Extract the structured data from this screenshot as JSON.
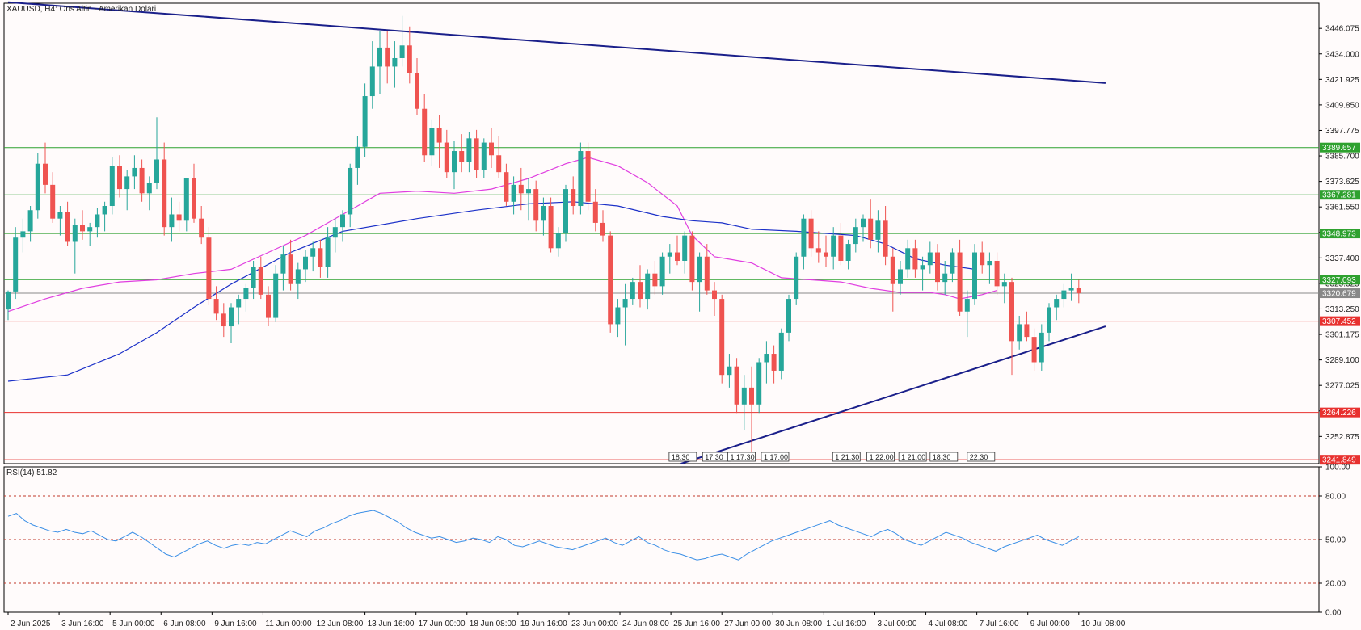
{
  "chart_data": {
    "type": "candlestick",
    "title": "XAUUSD, H4:  Ons Altin - Amerikan Dolari",
    "price_axis": {
      "ylim": [
        3240.0,
        3458.0
      ],
      "ticks": [
        "3446.075",
        "3434.000",
        "3421.925",
        "3409.850",
        "3397.775",
        "3385.700",
        "3373.625",
        "3361.550",
        "3349.475",
        "3337.400",
        "3325.325",
        "3313.250",
        "3301.175",
        "3289.100",
        "3277.025",
        "3264.950",
        "3252.875"
      ]
    },
    "x_axis": {
      "labels": [
        "2 Jun 2025",
        "3 Jun 16:00",
        "5 Jun 00:00",
        "6 Jun 08:00",
        "9 Jun 16:00",
        "11 Jun 00:00",
        "12 Jun 08:00",
        "13 Jun 16:00",
        "17 Jun 00:00",
        "18 Jun 08:00",
        "19 Jun 16:00",
        "23 Jun 00:00",
        "24 Jun 08:00",
        "25 Jun 16:00",
        "27 Jun 00:00",
        "30 Jun 08:00",
        "1 Jul 16:00",
        "3 Jul 00:00",
        "4 Jul 08:00",
        "7 Jul 16:00",
        "9 Jul 00:00",
        "10 Jul 08:00"
      ]
    },
    "horizontal_levels": [
      {
        "price": 3389.657,
        "label": "3389.657",
        "color": "#2fa12f"
      },
      {
        "price": 3367.281,
        "label": "3367.281",
        "color": "#2fa12f"
      },
      {
        "price": 3348.973,
        "label": "3348.973",
        "color": "#2fa12f"
      },
      {
        "price": 3327.093,
        "label": "3327.093",
        "color": "#2fa12f"
      },
      {
        "price": 3320.679,
        "label": "3320.679",
        "color": "#888888"
      },
      {
        "price": 3307.452,
        "label": "3307.452",
        "color": "#e8312f"
      },
      {
        "price": 3264.226,
        "label": "3264.226",
        "color": "#e8312f"
      },
      {
        "price": 3241.849,
        "label": "3241.849",
        "color": "#e8312f"
      }
    ],
    "trendlines": [
      {
        "name": "resistance",
        "color": "#1a1f8a",
        "points": [
          [
            0,
            3458.5
          ],
          [
            147.6,
            3420.2
          ]
        ]
      },
      {
        "name": "support",
        "color": "#1a1f8a",
        "points": [
          [
            90.5,
            3240.0
          ],
          [
            147.6,
            3305.0
          ]
        ]
      }
    ],
    "session_markers": [
      {
        "text": "18:30",
        "x": 88.9
      },
      {
        "text": "17:30",
        "x": 93.4
      },
      {
        "text": "1 17:30",
        "x": 96.8
      },
      {
        "text": "1 17:00",
        "x": 101.3
      },
      {
        "text": "1 21:30",
        "x": 110.9
      },
      {
        "text": "1 22:00",
        "x": 115.5
      },
      {
        "text": "1 21:00",
        "x": 119.8
      },
      {
        "text": "18:30",
        "x": 124.0
      },
      {
        "text": "22:30",
        "x": 129.0
      }
    ],
    "candles_ohlc": [
      [
        3313.0,
        3322.0,
        3308.0,
        3321.5
      ],
      [
        3321.5,
        3352.0,
        3318.0,
        3347.0
      ],
      [
        3347.0,
        3356.0,
        3340.0,
        3350.0
      ],
      [
        3350.0,
        3362.0,
        3345.0,
        3360.0
      ],
      [
        3360.0,
        3387.0,
        3356.0,
        3382.0
      ],
      [
        3382.0,
        3392.0,
        3368.0,
        3372.0
      ],
      [
        3372.0,
        3378.0,
        3354.0,
        3356.0
      ],
      [
        3356.0,
        3362.0,
        3348.0,
        3359.0
      ],
      [
        3359.0,
        3364.0,
        3343.0,
        3345.0
      ],
      [
        3345.0,
        3356.0,
        3330.0,
        3353.0
      ],
      [
        3353.0,
        3360.0,
        3346.0,
        3350.0
      ],
      [
        3350.0,
        3354.0,
        3343.0,
        3352.0
      ],
      [
        3352.0,
        3361.0,
        3347.0,
        3358.0
      ],
      [
        3358.0,
        3364.0,
        3350.0,
        3362.0
      ],
      [
        3362.0,
        3385.0,
        3358.0,
        3381.0
      ],
      [
        3381.0,
        3386.0,
        3366.0,
        3370.0
      ],
      [
        3370.0,
        3379.0,
        3360.0,
        3376.0
      ],
      [
        3376.0,
        3386.0,
        3370.0,
        3380.0
      ],
      [
        3380.0,
        3384.0,
        3364.0,
        3368.0
      ],
      [
        3368.0,
        3376.0,
        3360.0,
        3373.0
      ],
      [
        3373.0,
        3404.0,
        3370.0,
        3384.0
      ],
      [
        3384.0,
        3392.0,
        3348.0,
        3352.0
      ],
      [
        3352.0,
        3366.0,
        3345.0,
        3358.0
      ],
      [
        3358.0,
        3364.0,
        3350.0,
        3355.0
      ],
      [
        3355.0,
        3372.0,
        3350.0,
        3375.0
      ],
      [
        3375.0,
        3382.0,
        3354.0,
        3356.0
      ],
      [
        3356.0,
        3362.0,
        3344.0,
        3347.0
      ],
      [
        3347.0,
        3352.0,
        3315.0,
        3318.0
      ],
      [
        3318.0,
        3324.0,
        3308.0,
        3311.0
      ],
      [
        3311.0,
        3316.0,
        3300.0,
        3305.0
      ],
      [
        3305.0,
        3316.0,
        3297.0,
        3314.0
      ],
      [
        3314.0,
        3320.0,
        3306.0,
        3318.0
      ],
      [
        3318.0,
        3325.0,
        3312.0,
        3323.0
      ],
      [
        3323.0,
        3336.0,
        3318.0,
        3333.0
      ],
      [
        3333.0,
        3338.0,
        3318.0,
        3320.0
      ],
      [
        3320.0,
        3324.0,
        3305.0,
        3309.0
      ],
      [
        3309.0,
        3334.0,
        3307.0,
        3330.0
      ],
      [
        3330.0,
        3343.0,
        3322.0,
        3339.0
      ],
      [
        3339.0,
        3346.0,
        3322.0,
        3325.0
      ],
      [
        3325.0,
        3335.0,
        3318.0,
        3332.0
      ],
      [
        3332.0,
        3341.0,
        3326.0,
        3338.0
      ],
      [
        3338.0,
        3345.0,
        3331.0,
        3342.0
      ],
      [
        3342.0,
        3346.0,
        3328.0,
        3333.0
      ],
      [
        3333.0,
        3352.0,
        3328.0,
        3347.0
      ],
      [
        3347.0,
        3356.0,
        3340.0,
        3352.0
      ],
      [
        3352.0,
        3360.0,
        3345.0,
        3358.0
      ],
      [
        3358.0,
        3382.0,
        3352.0,
        3380.0
      ],
      [
        3380.0,
        3395.0,
        3372.0,
        3390.0
      ],
      [
        3390.0,
        3420.0,
        3385.0,
        3414.0
      ],
      [
        3414.0,
        3440.0,
        3408.0,
        3428.0
      ],
      [
        3428.0,
        3445.0,
        3415.0,
        3437.0
      ],
      [
        3437.0,
        3445.0,
        3420.0,
        3428.0
      ],
      [
        3428.0,
        3440.0,
        3418.0,
        3432.0
      ],
      [
        3432.0,
        3452.0,
        3428.0,
        3438.0
      ],
      [
        3438.0,
        3447.0,
        3420.0,
        3425.0
      ],
      [
        3425.0,
        3432.0,
        3405.0,
        3408.0
      ],
      [
        3408.0,
        3415.0,
        3383.0,
        3386.0
      ],
      [
        3386.0,
        3403.0,
        3381.0,
        3399.0
      ],
      [
        3399.0,
        3405.0,
        3380.0,
        3392.0
      ],
      [
        3392.0,
        3398.0,
        3375.0,
        3378.0
      ],
      [
        3378.0,
        3393.0,
        3370.0,
        3388.0
      ],
      [
        3388.0,
        3396.0,
        3378.0,
        3383.0
      ],
      [
        3383.0,
        3397.0,
        3378.0,
        3394.0
      ],
      [
        3394.0,
        3398.0,
        3375.0,
        3379.0
      ],
      [
        3379.0,
        3394.0,
        3375.0,
        3392.0
      ],
      [
        3392.0,
        3399.0,
        3380.0,
        3386.0
      ],
      [
        3386.0,
        3395.0,
        3375.0,
        3378.0
      ],
      [
        3378.0,
        3382.0,
        3362.0,
        3364.0
      ],
      [
        3364.0,
        3376.0,
        3358.0,
        3372.0
      ],
      [
        3372.0,
        3380.0,
        3360.0,
        3368.0
      ],
      [
        3368.0,
        3375.0,
        3355.0,
        3370.0
      ],
      [
        3370.0,
        3374.0,
        3350.0,
        3355.0
      ],
      [
        3355.0,
        3366.0,
        3348.0,
        3362.0
      ],
      [
        3362.0,
        3366.0,
        3340.0,
        3342.0
      ],
      [
        3342.0,
        3352.0,
        3338.0,
        3349.0
      ],
      [
        3349.0,
        3372.0,
        3345.0,
        3370.0
      ],
      [
        3370.0,
        3376.0,
        3358.0,
        3362.0
      ],
      [
        3362.0,
        3392.0,
        3358.0,
        3388.0
      ],
      [
        3388.0,
        3392.0,
        3360.0,
        3364.0
      ],
      [
        3364.0,
        3370.0,
        3350.0,
        3354.0
      ],
      [
        3354.0,
        3360.0,
        3345.0,
        3348.0
      ],
      [
        3348.0,
        3350.0,
        3302.0,
        3306.0
      ],
      [
        3306.0,
        3318.0,
        3300.0,
        3314.0
      ],
      [
        3314.0,
        3325.0,
        3296.0,
        3318.0
      ],
      [
        3318.0,
        3328.0,
        3315.0,
        3326.0
      ],
      [
        3326.0,
        3334.0,
        3314.0,
        3318.0
      ],
      [
        3318.0,
        3332.0,
        3313.0,
        3330.0
      ],
      [
        3330.0,
        3336.0,
        3320.0,
        3324.0
      ],
      [
        3324.0,
        3340.0,
        3320.0,
        3338.0
      ],
      [
        3338.0,
        3344.0,
        3330.0,
        3340.0
      ],
      [
        3340.0,
        3348.0,
        3334.0,
        3336.0
      ],
      [
        3336.0,
        3350.0,
        3330.0,
        3348.0
      ],
      [
        3348.0,
        3350.0,
        3322.0,
        3326.0
      ],
      [
        3326.0,
        3340.0,
        3312.0,
        3338.0
      ],
      [
        3338.0,
        3344.0,
        3320.0,
        3322.0
      ],
      [
        3322.0,
        3326.0,
        3310.0,
        3318.0
      ],
      [
        3318.0,
        3320.0,
        3278.0,
        3282.0
      ],
      [
        3282.0,
        3292.0,
        3276.0,
        3286.0
      ],
      [
        3286.0,
        3290.0,
        3264.0,
        3268.0
      ],
      [
        3268.0,
        3282.0,
        3256.0,
        3276.0
      ],
      [
        3276.0,
        3286.0,
        3244.0,
        3268.0
      ],
      [
        3268.0,
        3290.0,
        3264.0,
        3288.0
      ],
      [
        3288.0,
        3298.0,
        3278.0,
        3292.0
      ],
      [
        3292.0,
        3296.0,
        3278.0,
        3284.0
      ],
      [
        3284.0,
        3304.0,
        3280.0,
        3302.0
      ],
      [
        3302.0,
        3320.0,
        3298.0,
        3318.0
      ],
      [
        3318.0,
        3340.0,
        3315.0,
        3338.0
      ],
      [
        3338.0,
        3358.0,
        3332.0,
        3356.0
      ],
      [
        3356.0,
        3360.0,
        3338.0,
        3342.0
      ],
      [
        3342.0,
        3350.0,
        3335.0,
        3340.0
      ],
      [
        3340.0,
        3348.0,
        3333.0,
        3338.0
      ],
      [
        3338.0,
        3352.0,
        3332.0,
        3348.0
      ],
      [
        3348.0,
        3354.0,
        3334.0,
        3336.0
      ],
      [
        3336.0,
        3346.0,
        3332.0,
        3344.0
      ],
      [
        3344.0,
        3356.0,
        3340.0,
        3352.0
      ],
      [
        3352.0,
        3358.0,
        3345.0,
        3356.0
      ],
      [
        3356.0,
        3365.0,
        3342.0,
        3346.0
      ],
      [
        3346.0,
        3360.0,
        3340.0,
        3355.0
      ],
      [
        3355.0,
        3362.0,
        3334.0,
        3338.0
      ],
      [
        3338.0,
        3342.0,
        3312.0,
        3325.0
      ],
      [
        3325.0,
        3336.0,
        3320.0,
        3332.0
      ],
      [
        3332.0,
        3346.0,
        3328.0,
        3342.0
      ],
      [
        3342.0,
        3346.0,
        3328.0,
        3332.0
      ],
      [
        3332.0,
        3338.0,
        3322.0,
        3334.0
      ],
      [
        3334.0,
        3345.0,
        3330.0,
        3340.0
      ],
      [
        3340.0,
        3344.0,
        3322.0,
        3326.0
      ],
      [
        3326.0,
        3336.0,
        3320.0,
        3330.0
      ],
      [
        3330.0,
        3342.0,
        3326.0,
        3340.0
      ],
      [
        3340.0,
        3346.0,
        3310.0,
        3312.0
      ],
      [
        3312.0,
        3322.0,
        3300.0,
        3318.0
      ],
      [
        3318.0,
        3344.0,
        3315.0,
        3340.0
      ],
      [
        3340.0,
        3345.0,
        3330.0,
        3334.0
      ],
      [
        3334.0,
        3340.0,
        3325.0,
        3336.0
      ],
      [
        3336.0,
        3340.0,
        3320.0,
        3324.0
      ],
      [
        3324.0,
        3330.0,
        3316.0,
        3326.0
      ],
      [
        3326.0,
        3328.0,
        3282.0,
        3298.0
      ],
      [
        3298.0,
        3310.0,
        3294.0,
        3306.0
      ],
      [
        3306.0,
        3312.0,
        3298.0,
        3300.0
      ],
      [
        3300.0,
        3304.0,
        3284.0,
        3288.0
      ],
      [
        3288.0,
        3306.0,
        3284.0,
        3302.0
      ],
      [
        3302.0,
        3316.0,
        3298.0,
        3314.0
      ],
      [
        3314.0,
        3320.0,
        3308.0,
        3318.0
      ],
      [
        3318.0,
        3325.0,
        3314.0,
        3322.0
      ],
      [
        3322.0,
        3330.0,
        3317.0,
        3323.0
      ],
      [
        3323.0,
        3327.0,
        3316.0,
        3320.68
      ]
    ],
    "moving_averages": [
      {
        "name": "MA fast",
        "color": "#e03ee0",
        "points": [
          [
            0,
            3312
          ],
          [
            5,
            3318
          ],
          [
            10,
            3323
          ],
          [
            15,
            3326
          ],
          [
            20,
            3327
          ],
          [
            25,
            3330
          ],
          [
            30,
            3332
          ],
          [
            35,
            3340
          ],
          [
            40,
            3348
          ],
          [
            45,
            3358
          ],
          [
            50,
            3368
          ],
          [
            55,
            3369
          ],
          [
            60,
            3368
          ],
          [
            65,
            3370
          ],
          [
            70,
            3375
          ],
          [
            75,
            3382
          ],
          [
            78,
            3385
          ],
          [
            82,
            3381
          ],
          [
            86,
            3373
          ],
          [
            90,
            3362
          ],
          [
            92,
            3348
          ],
          [
            95,
            3338
          ],
          [
            100,
            3335
          ],
          [
            104,
            3328
          ],
          [
            108,
            3327
          ],
          [
            112,
            3326
          ],
          [
            116,
            3323
          ],
          [
            120,
            3321
          ],
          [
            124,
            3321
          ],
          [
            126,
            3320
          ],
          [
            128,
            3318
          ],
          [
            131,
            3320
          ],
          [
            133,
            3322
          ]
        ]
      },
      {
        "name": "MA slow",
        "color": "#1b30c8",
        "points": [
          [
            0,
            3279
          ],
          [
            8,
            3282
          ],
          [
            15,
            3292
          ],
          [
            20,
            3302
          ],
          [
            25,
            3314
          ],
          [
            30,
            3325
          ],
          [
            38,
            3340
          ],
          [
            45,
            3350
          ],
          [
            55,
            3356
          ],
          [
            63,
            3360
          ],
          [
            70,
            3363
          ],
          [
            76,
            3364
          ],
          [
            82,
            3362
          ],
          [
            88,
            3357
          ],
          [
            92,
            3355
          ],
          [
            96,
            3354
          ],
          [
            100,
            3351
          ],
          [
            106,
            3350
          ],
          [
            110,
            3349
          ],
          [
            114,
            3348
          ],
          [
            118,
            3344
          ],
          [
            122,
            3337
          ],
          [
            126,
            3334
          ],
          [
            130,
            3332
          ]
        ]
      }
    ],
    "rsi": {
      "label": "RSI(14) 51.82",
      "levels": [
        "100.00",
        "80.00",
        "50.00",
        "20.00",
        "0.00"
      ],
      "values": [
        66,
        68,
        63,
        60,
        58,
        56,
        55,
        57,
        55,
        54,
        56,
        53,
        50,
        49,
        52,
        55,
        52,
        48,
        44,
        40,
        38,
        41,
        44,
        47,
        49,
        46,
        44,
        46,
        47,
        46,
        48,
        47,
        50,
        53,
        56,
        54,
        52,
        56,
        58,
        61,
        63,
        66,
        68,
        69,
        70,
        68,
        65,
        62,
        58,
        55,
        53,
        51,
        52,
        50,
        48,
        49,
        51,
        50,
        48,
        52,
        50,
        46,
        45,
        47,
        49,
        47,
        45,
        44,
        43,
        45,
        47,
        49,
        51,
        48,
        46,
        49,
        52,
        48,
        46,
        43,
        41,
        40,
        38,
        36,
        37,
        39,
        40,
        38,
        36,
        40,
        43,
        46,
        49,
        51,
        53,
        55,
        57,
        59,
        61,
        63,
        60,
        58,
        56,
        54,
        52,
        55,
        57,
        54,
        50,
        48,
        46,
        49,
        52,
        55,
        53,
        51,
        48,
        46,
        44,
        42,
        45,
        47,
        49,
        51,
        53,
        50,
        48,
        46,
        49,
        52
      ]
    }
  }
}
